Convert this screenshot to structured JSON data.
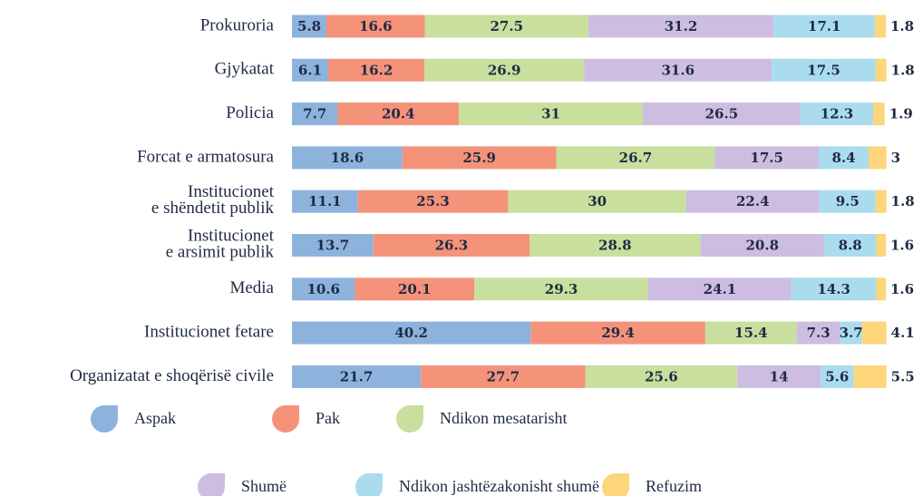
{
  "chart_data": {
    "type": "stacked-bar-horizontal",
    "categories": [
      "Prokuroria",
      "Gjykatat",
      "Policia",
      "Forcat e armatosura",
      "Institucionet\ne shëndetit publik",
      "Institucionet\ne arsimit publik",
      "Media",
      "Institucionet fetare",
      "Organizatat e shoqërisë civile"
    ],
    "xlim": [
      0,
      100
    ],
    "series": [
      {
        "name": "Aspak",
        "color": "#8db3dd",
        "values": [
          5.8,
          6.1,
          7.7,
          18.6,
          11.1,
          13.7,
          10.6,
          40.2,
          21.7
        ]
      },
      {
        "name": "Pak",
        "color": "#f4937a",
        "values": [
          16.6,
          16.2,
          20.4,
          25.9,
          25.3,
          26.3,
          20.1,
          29.4,
          27.7
        ]
      },
      {
        "name": "Ndikon mesatarisht",
        "color": "#c8df9e",
        "values": [
          27.5,
          26.9,
          31,
          26.7,
          30,
          28.8,
          29.3,
          15.4,
          25.6
        ]
      },
      {
        "name": "Shumë",
        "color": "#cdbde0",
        "values": [
          31.2,
          31.6,
          26.5,
          17.5,
          22.4,
          20.8,
          24.1,
          7.3,
          14
        ]
      },
      {
        "name": "Ndikon jashtëzakonisht shumë",
        "color": "#aadcee",
        "values": [
          17.1,
          17.5,
          12.3,
          8.4,
          9.5,
          8.8,
          14.3,
          3.7,
          5.6
        ]
      },
      {
        "name": "Refuzim",
        "color": "#fdd57a",
        "values": [
          1.8,
          1.8,
          1.9,
          3,
          1.8,
          1.6,
          1.6,
          4.1,
          5.5
        ]
      }
    ],
    "legend": "bottom"
  }
}
